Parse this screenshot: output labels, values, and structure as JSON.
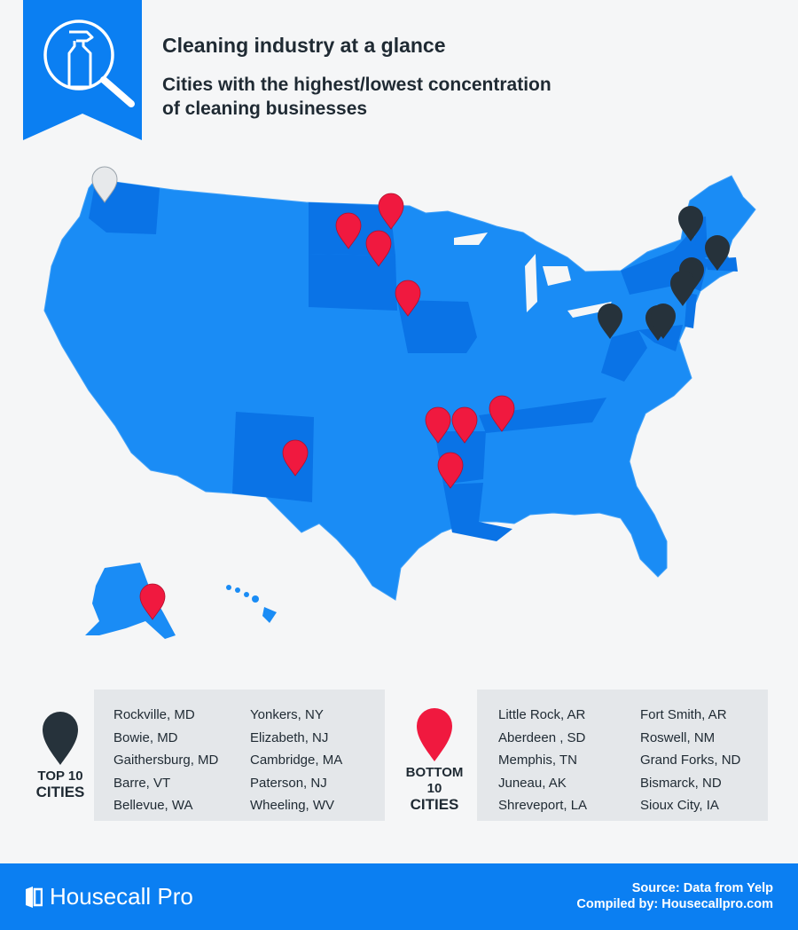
{
  "header": {
    "title": "Cleaning industry at a glance",
    "subtitle_line1": "Cities with the highest/lowest concentration",
    "subtitle_line2": "of cleaning businesses"
  },
  "legend": {
    "top_label_1": "TOP 10",
    "top_label_2": "CITIES",
    "top_cities_col1": [
      "Rockville, MD",
      "Bowie, MD",
      "Gaithersburg, MD",
      "Barre, VT",
      "Bellevue, WA"
    ],
    "top_cities_col2": [
      "Yonkers, NY",
      "Elizabeth, NJ",
      "Cambridge, MA",
      "Paterson, NJ",
      "Wheeling, WV"
    ],
    "bottom_label_1": "BOTTOM",
    "bottom_label_2": "10",
    "bottom_label_3": "CITIES",
    "bottom_cities_col1": [
      "Little Rock, AR",
      "Aberdeen , SD",
      "Memphis, TN",
      "Juneau, AK",
      "Shreveport, LA"
    ],
    "bottom_cities_col2": [
      "Fort Smith, AR",
      "Roswell, NM",
      "Grand Forks, ND",
      "Bismarck, ND",
      "Sioux City, IA"
    ]
  },
  "footer": {
    "brand": "Housecall Pro",
    "source": "Source: Data from Yelp",
    "compiled": "Compiled by: Housecallpro.com"
  },
  "colors": {
    "accent_blue": "#0b7ff2",
    "map_blue": "#1a8cf5",
    "highlight_blue": "#0a73e6",
    "top_pin": "#26323b",
    "bottom_pin": "#f0193f",
    "outlier_pin": "#e7e9eb"
  },
  "icons": [
    "spray-bottle-icon",
    "magnifier-icon",
    "map-pin-icon",
    "housecall-logo-icon"
  ]
}
